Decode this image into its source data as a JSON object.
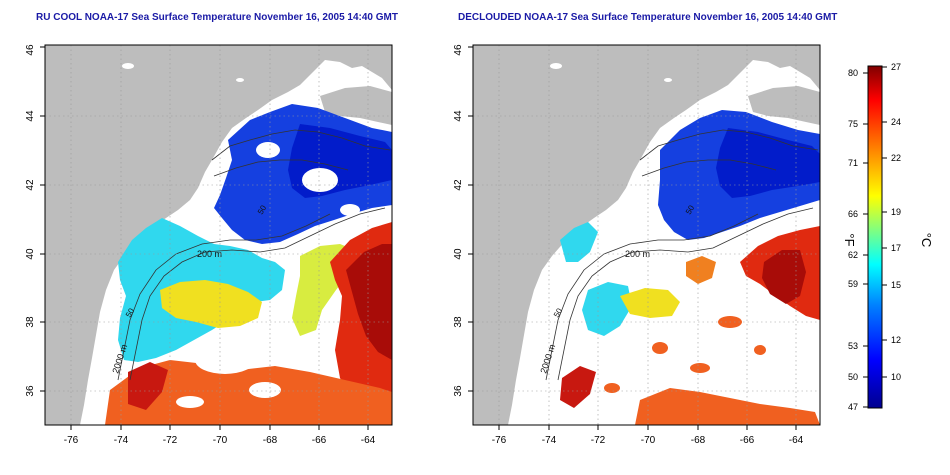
{
  "figure": {
    "left_title": "RU COOL NOAA-17 Sea Surface Temperature November 16, 2005 14:40 GMT",
    "right_title": "DECLOUDED NOAA-17 Sea Surface Temperature November 16, 2005 14:40 GMT"
  },
  "map_axes": {
    "lon_ticks": [
      "-76",
      "-74",
      "-72",
      "-70",
      "-68",
      "-66",
      "-64"
    ],
    "lat_ticks": [
      "36",
      "38",
      "40",
      "42",
      "44",
      "46"
    ],
    "lon_range": [
      -77,
      -63
    ],
    "lat_range": [
      35,
      46
    ]
  },
  "isobath_labels": {
    "m200": "200 m",
    "m2000": "2000 m",
    "m50a": "50",
    "m50b": "50"
  },
  "colorbar": {
    "fahrenheit_label": "°F",
    "celsius_label": "°C",
    "fahrenheit_ticks": [
      "80",
      "75",
      "71",
      "66",
      "62",
      "59",
      "53",
      "50",
      "47"
    ],
    "celsius_ticks": [
      "27",
      "24",
      "22",
      "19",
      "17",
      "15",
      "12",
      "10"
    ],
    "colors": [
      "#00008f",
      "#0000ff",
      "#0080ff",
      "#00ffff",
      "#80ff80",
      "#ffff00",
      "#ff8000",
      "#ff0000",
      "#800000"
    ]
  },
  "colors": {
    "land": "#bdbdbd",
    "title": "#1a1aa6",
    "warm": "#e02010",
    "cold": "#1030e0"
  }
}
